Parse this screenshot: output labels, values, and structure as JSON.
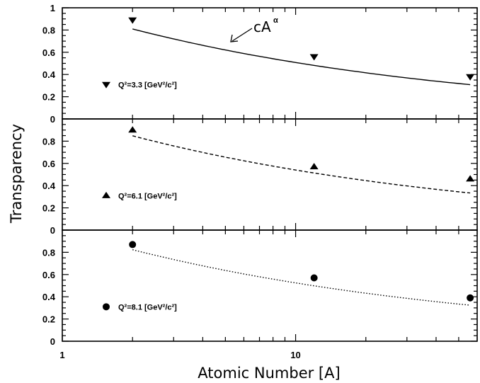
{
  "chart_data": {
    "type": "scatter",
    "xlabel": "Atomic Number [A]",
    "ylabel": "Transparency",
    "x_scale": "log",
    "xlim": [
      1,
      60
    ],
    "x_tick_labels": [
      "1",
      "10"
    ],
    "panels": [
      {
        "ylim": [
          0,
          1
        ],
        "y_tick_labels": [
          "1",
          "0.8",
          "0.6",
          "0.4",
          "0.2",
          "0"
        ],
        "legend": "Q²=3.3 [GeV²/c²]",
        "marker": "triangle-down",
        "curve_style": "solid",
        "annotation": "cA",
        "annotation_sup": "α",
        "points": [
          {
            "x": 2,
            "y": 0.89
          },
          {
            "x": 12,
            "y": 0.56
          },
          {
            "x": 56,
            "y": 0.38
          }
        ],
        "fit": {
          "c": 0.99,
          "alpha": -0.29
        }
      },
      {
        "ylim": [
          0,
          1
        ],
        "y_tick_labels": [
          "0.8",
          "0.6",
          "0.4",
          "0.2",
          "0"
        ],
        "legend": "Q²=6.1 [GeV²/c²]",
        "marker": "triangle-up",
        "curve_style": "dashed",
        "points": [
          {
            "x": 2,
            "y": 0.9
          },
          {
            "x": 12,
            "y": 0.57
          },
          {
            "x": 56,
            "y": 0.46
          }
        ],
        "fit": {
          "c": 1.03,
          "alpha": -0.28
        }
      },
      {
        "ylim": [
          0,
          1
        ],
        "y_tick_labels": [
          "0.8",
          "0.6",
          "0.4",
          "0.2",
          "0"
        ],
        "legend": "Q²=8.1 [GeV²/c²]",
        "marker": "circle",
        "curve_style": "dotted",
        "points": [
          {
            "x": 2,
            "y": 0.87
          },
          {
            "x": 12,
            "y": 0.57
          },
          {
            "x": 56,
            "y": 0.39
          }
        ],
        "fit": {
          "c": 1.0,
          "alpha": -0.28
        }
      }
    ]
  }
}
